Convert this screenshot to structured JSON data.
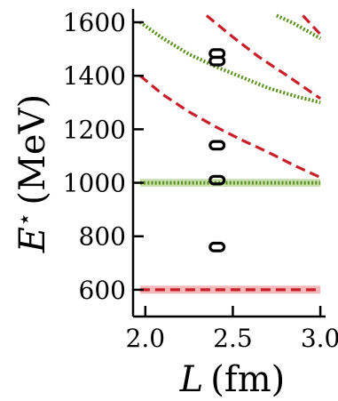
{
  "chart_data": {
    "type": "line",
    "xlabel": "L (fm)",
    "ylabel": "E⋆ (MeV)",
    "xlim": [
      1.93,
      3.03
    ],
    "ylim": [
      500,
      1650
    ],
    "x_ticks": [
      2.0,
      2.5,
      3.0
    ],
    "x_tick_labels": [
      "2.0",
      "2.5",
      "3.0"
    ],
    "y_ticks": [
      600,
      800,
      1000,
      1200,
      1400,
      1600
    ],
    "y_tick_labels": [
      "600",
      "800",
      "1000",
      "1200",
      "1400",
      "1600"
    ],
    "grid": false,
    "colors": {
      "red": "#c8202a",
      "red_band": "#f3b8b8",
      "green": "#5a8f1e",
      "green_band": "#c9dfb0",
      "ellipse": "#000000"
    },
    "series": [
      {
        "style": "dashed",
        "color": "red",
        "band": true,
        "points": [
          [
            1.97,
            600
          ],
          [
            3.0,
            600
          ]
        ]
      },
      {
        "style": "dotted",
        "color": "green",
        "band": true,
        "points": [
          [
            1.97,
            1000
          ],
          [
            3.0,
            1000
          ]
        ]
      },
      {
        "style": "dashed",
        "color": "red",
        "band": false,
        "points": [
          [
            1.97,
            1400
          ],
          [
            2.1,
            1330
          ],
          [
            2.25,
            1265
          ],
          [
            2.4,
            1210
          ],
          [
            2.55,
            1160
          ],
          [
            2.7,
            1115
          ],
          [
            2.85,
            1065
          ],
          [
            3.0,
            1020
          ]
        ]
      },
      {
        "style": "dotted",
        "color": "green",
        "band": false,
        "points": [
          [
            1.97,
            1600
          ],
          [
            2.1,
            1540
          ],
          [
            2.25,
            1480
          ],
          [
            2.4,
            1435
          ],
          [
            2.55,
            1395
          ],
          [
            2.7,
            1355
          ],
          [
            2.85,
            1325
          ],
          [
            3.0,
            1300
          ]
        ]
      },
      {
        "style": "dashed",
        "color": "red",
        "band": false,
        "points": [
          [
            2.35,
            1625
          ],
          [
            2.5,
            1545
          ],
          [
            2.65,
            1470
          ],
          [
            2.8,
            1405
          ],
          [
            3.0,
            1315
          ]
        ]
      },
      {
        "style": "dotted",
        "color": "green",
        "band": false,
        "points": [
          [
            2.75,
            1625
          ],
          [
            2.85,
            1595
          ],
          [
            3.0,
            1540
          ]
        ]
      },
      {
        "style": "dashed",
        "color": "red",
        "band": false,
        "points": [
          [
            2.9,
            1625
          ],
          [
            3.0,
            1555
          ]
        ]
      }
    ],
    "levels": [
      {
        "x": 2.41,
        "y": 760,
        "dx": 0.06,
        "dy": 12
      },
      {
        "x": 2.41,
        "y": 1010,
        "dx": 0.06,
        "dy": 12
      },
      {
        "x": 2.41,
        "y": 1140,
        "dx": 0.06,
        "dy": 12
      },
      {
        "x": 2.41,
        "y": 1455,
        "dx": 0.06,
        "dy": 12
      },
      {
        "x": 2.41,
        "y": 1483,
        "dx": 0.06,
        "dy": 12
      }
    ]
  }
}
